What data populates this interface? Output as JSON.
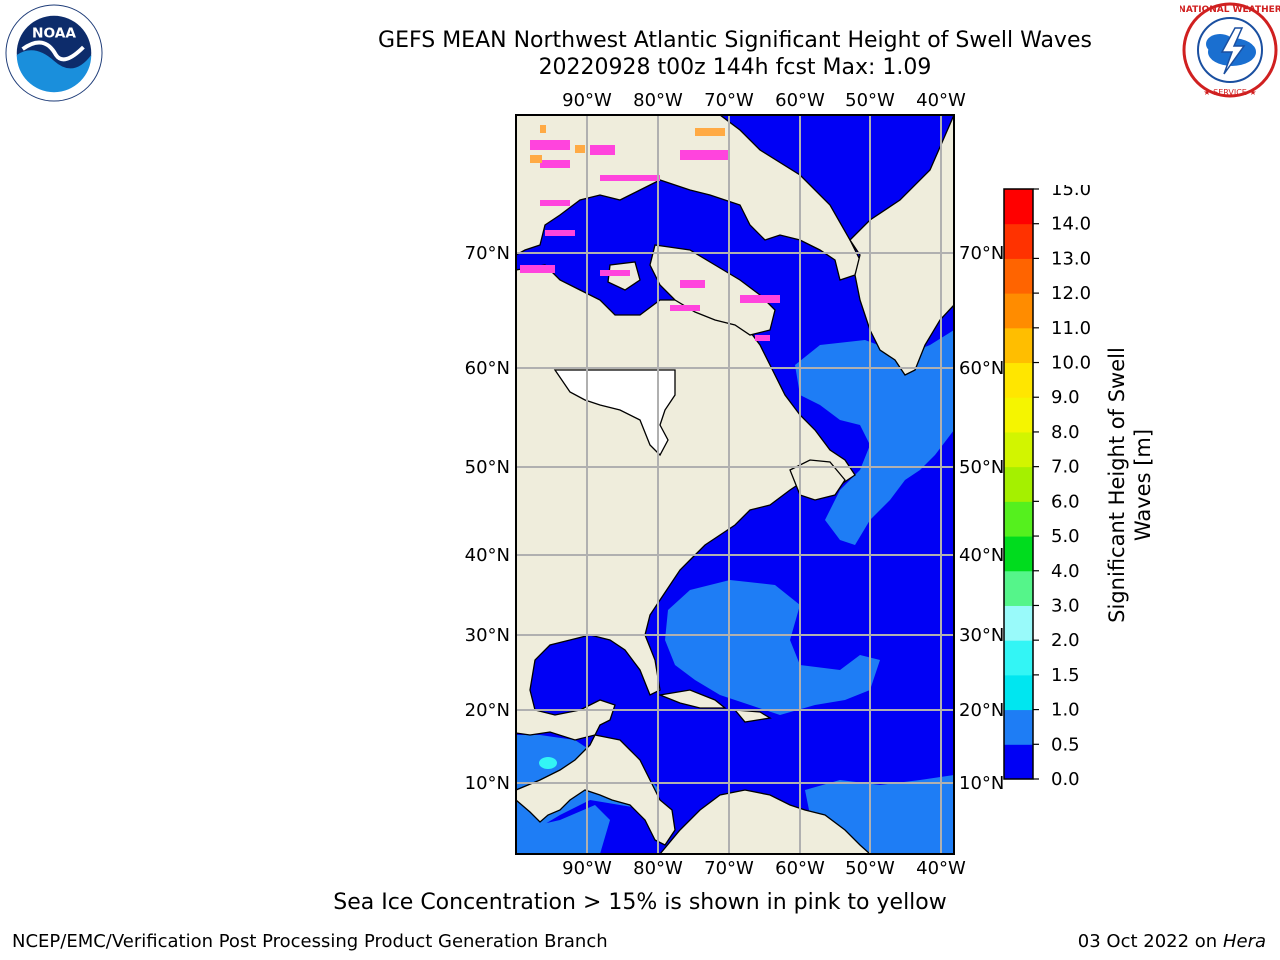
{
  "title": {
    "line1": "GEFS MEAN Northwest Atlantic Significant Height of Swell Waves",
    "line2": "20220928 t00z 144h fcst   Max: 1.09"
  },
  "logos": {
    "left": "noaa-logo",
    "left_text": "NOAA",
    "left_ring_text": "NATIONAL OCEANIC AND ATMOSPHERIC ADMINISTRATION · U.S. DEPARTMENT OF COMMERCE",
    "right": "nws-logo",
    "right_ring_text": "NATIONAL WEATHER SERVICE"
  },
  "map": {
    "lon_labels": [
      "90°W",
      "80°W",
      "70°W",
      "60°W",
      "50°W",
      "40°W"
    ],
    "lat_labels": [
      "70°N",
      "60°N",
      "50°N",
      "40°N",
      "30°N",
      "20°N",
      "10°N"
    ],
    "colors": {
      "land": "#efeddc",
      "ocean_low": "#0000f5",
      "ocean_mid": "#1e7df5",
      "ocean_cyan": "#33f5f5",
      "sea_ice_pink": "#ff44dd",
      "sea_ice_orange": "#ffaa44",
      "grid": "#b0b0b0",
      "no_data": "#ffffff"
    }
  },
  "colorbar": {
    "label": "Significant Height of Swell Waves [m]",
    "levels": [
      "0.0",
      "0.5",
      "1.0",
      "1.5",
      "2.0",
      "3.0",
      "4.0",
      "5.0",
      "6.0",
      "7.0",
      "8.0",
      "9.0",
      "10.0",
      "11.0",
      "12.0",
      "13.0",
      "14.0",
      "15.0"
    ],
    "colors": [
      "#0000f5",
      "#1e7df5",
      "#00e6f0",
      "#33f5f5",
      "#99fafa",
      "#55f58a",
      "#00dc1e",
      "#55f01e",
      "#a5f000",
      "#d2f500",
      "#f5f500",
      "#ffe600",
      "#ffbe00",
      "#ff8c00",
      "#ff6400",
      "#ff3200",
      "#ff0000"
    ]
  },
  "note": "Sea Ice Concentration > 15% is shown in pink to yellow",
  "footer": {
    "left": "NCEP/EMC/Verification Post Processing Product Generation Branch",
    "right_date": "03 Oct 2022 on ",
    "right_host": "Hera"
  }
}
